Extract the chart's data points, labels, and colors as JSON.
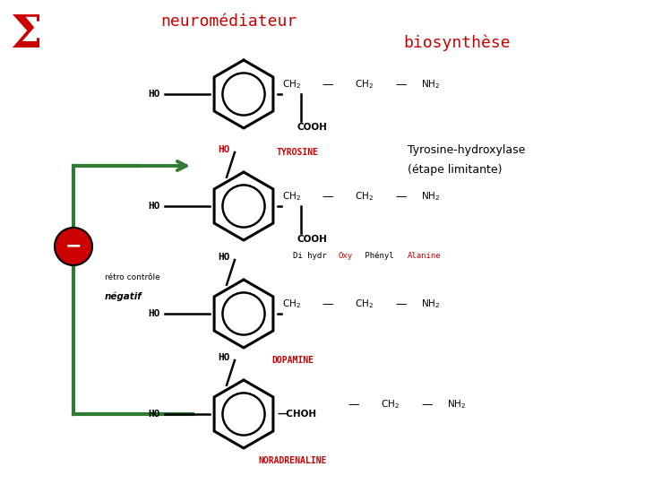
{
  "title_sigma": "Σ",
  "title_neuro": "neuromédiateur",
  "title_biosynthese": "biosynthèse",
  "sigma_color": "#cc0000",
  "neuro_color": "#cc0000",
  "biosynthese_color": "#cc0000",
  "tyrosine_label": "TYROSINE",
  "dopamine_label": "DOPAMINE",
  "norad_label": "NORADRENALINE",
  "tyrosine_enzyme": "Tyrosine-hydroxylase",
  "etape_limitante": "(étape limitante)",
  "retro_text1": "rétro contrôle",
  "retro_text2": "négatif",
  "bg_color": "#ffffff",
  "black": "#000000",
  "red_label": "#cc0000",
  "green": "#2e7d32",
  "inhibit_red": "#cc0000",
  "xlim": [
    0,
    7.2
  ],
  "ylim": [
    0,
    5.4
  ]
}
